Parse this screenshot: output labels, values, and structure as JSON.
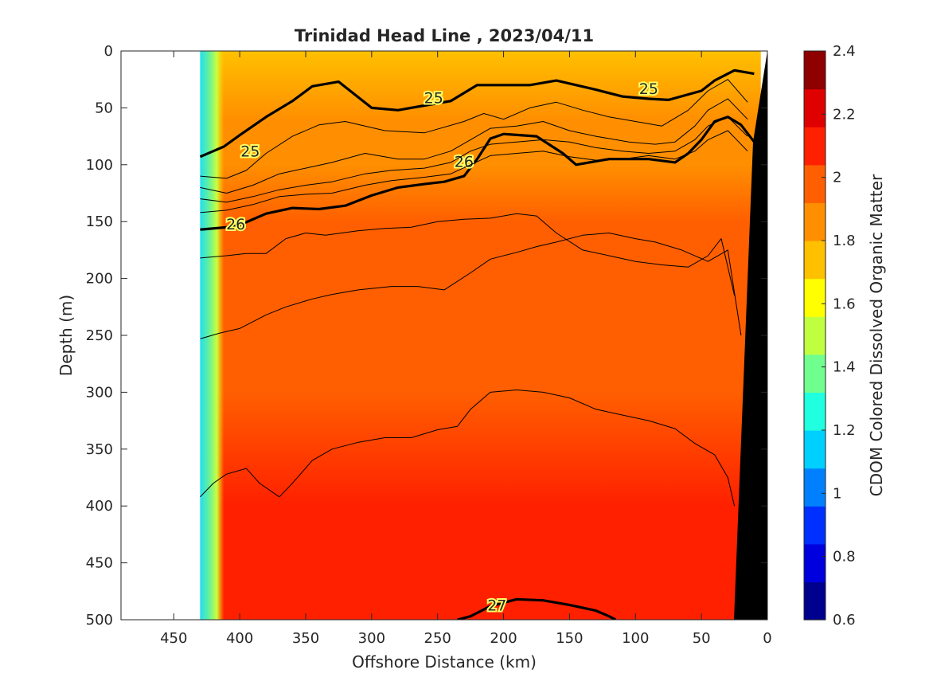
{
  "chart_data": {
    "type": "heatmap",
    "title": "Trinidad Head Line , 2023/04/11",
    "xlabel": "Offshore Distance (km)",
    "ylabel": "Depth (m)",
    "colorbar_label": "CDOM Colored Dissolved Organic Matter",
    "xlim": [
      490,
      0
    ],
    "ylim": [
      0,
      500
    ],
    "x_reversed": true,
    "y_reversed": true,
    "clim": [
      0.6,
      2.4
    ],
    "grid": false,
    "x_ticks": [
      450,
      400,
      350,
      300,
      250,
      200,
      150,
      100,
      50,
      0
    ],
    "y_ticks": [
      0,
      50,
      100,
      150,
      200,
      250,
      300,
      350,
      400,
      450,
      500
    ],
    "colorbar_ticks": [
      0.6,
      0.8,
      1,
      1.2,
      1.4,
      1.6,
      1.8,
      2,
      2.2,
      2.4
    ],
    "data_extent_x": [
      430,
      5
    ],
    "colormap": [
      "#00008f",
      "#0000df",
      "#0030ff",
      "#0080ff",
      "#00d0ff",
      "#20ffdf",
      "#70ff8f",
      "#c0ff40",
      "#ffff00",
      "#ffc000",
      "#ff8f00",
      "#ff5f00",
      "#ff2000",
      "#df0000",
      "#8f0000"
    ],
    "cdom_profile": [
      {
        "depth": 0,
        "value": 1.78
      },
      {
        "depth": 60,
        "value": 1.8
      },
      {
        "depth": 100,
        "value": 1.88
      },
      {
        "depth": 150,
        "value": 1.93
      },
      {
        "depth": 200,
        "value": 1.98
      },
      {
        "depth": 300,
        "value": 2.03
      },
      {
        "depth": 400,
        "value": 2.07
      },
      {
        "depth": 500,
        "value": 2.1
      }
    ],
    "density_contours": [
      {
        "label": "25",
        "bold": true,
        "label_positions": [
          [
            392,
            88
          ],
          [
            253,
            41
          ],
          [
            90,
            33
          ]
        ],
        "points": [
          [
            430,
            93
          ],
          [
            420,
            88
          ],
          [
            412,
            84
          ],
          [
            400,
            74
          ],
          [
            380,
            58
          ],
          [
            360,
            44
          ],
          [
            345,
            31
          ],
          [
            325,
            27
          ],
          [
            300,
            50
          ],
          [
            280,
            52
          ],
          [
            260,
            48
          ],
          [
            240,
            44
          ],
          [
            220,
            30
          ],
          [
            180,
            30
          ],
          [
            160,
            26
          ],
          [
            130,
            34
          ],
          [
            110,
            40
          ],
          [
            90,
            42
          ],
          [
            75,
            43
          ],
          [
            50,
            35
          ],
          [
            40,
            26
          ],
          [
            25,
            17
          ],
          [
            10,
            20
          ]
        ]
      },
      {
        "label": "26",
        "bold": true,
        "label_positions": [
          [
            403,
            152
          ],
          [
            230,
            97
          ]
        ],
        "points": [
          [
            430,
            157
          ],
          [
            410,
            155
          ],
          [
            400,
            153
          ],
          [
            380,
            143
          ],
          [
            360,
            138
          ],
          [
            340,
            139
          ],
          [
            320,
            136
          ],
          [
            300,
            127
          ],
          [
            280,
            120
          ],
          [
            260,
            117
          ],
          [
            245,
            115
          ],
          [
            230,
            110
          ],
          [
            220,
            95
          ],
          [
            210,
            77
          ],
          [
            200,
            73
          ],
          [
            175,
            75
          ],
          [
            155,
            90
          ],
          [
            145,
            100
          ],
          [
            135,
            98
          ],
          [
            120,
            95
          ],
          [
            100,
            95
          ],
          [
            90,
            95
          ],
          [
            70,
            98
          ],
          [
            60,
            90
          ],
          [
            50,
            78
          ],
          [
            40,
            62
          ],
          [
            30,
            58
          ],
          [
            20,
            65
          ],
          [
            10,
            80
          ]
        ]
      },
      {
        "label": "27",
        "bold": true,
        "label_positions": [
          [
            205,
            487
          ]
        ],
        "points": [
          [
            235,
            500
          ],
          [
            225,
            497
          ],
          [
            210,
            488
          ],
          [
            190,
            482
          ],
          [
            170,
            483
          ],
          [
            150,
            487
          ],
          [
            130,
            492
          ],
          [
            120,
            497
          ],
          [
            115,
            500
          ]
        ]
      },
      {
        "label": "",
        "bold": false,
        "points": [
          [
            430,
            110
          ],
          [
            410,
            112
          ],
          [
            395,
            105
          ],
          [
            380,
            90
          ],
          [
            360,
            75
          ],
          [
            340,
            65
          ],
          [
            320,
            62
          ],
          [
            290,
            70
          ],
          [
            260,
            72
          ],
          [
            230,
            62
          ],
          [
            215,
            55
          ],
          [
            200,
            60
          ],
          [
            180,
            50
          ],
          [
            160,
            45
          ],
          [
            140,
            52
          ],
          [
            120,
            58
          ],
          [
            100,
            62
          ],
          [
            80,
            66
          ],
          [
            60,
            52
          ],
          [
            45,
            35
          ],
          [
            30,
            25
          ],
          [
            15,
            45
          ]
        ]
      },
      {
        "label": "",
        "bold": false,
        "points": [
          [
            430,
            120
          ],
          [
            410,
            125
          ],
          [
            390,
            118
          ],
          [
            370,
            108
          ],
          [
            350,
            103
          ],
          [
            330,
            98
          ],
          [
            305,
            90
          ],
          [
            280,
            95
          ],
          [
            260,
            95
          ],
          [
            240,
            88
          ],
          [
            225,
            78
          ],
          [
            210,
            68
          ],
          [
            190,
            66
          ],
          [
            170,
            62
          ],
          [
            150,
            70
          ],
          [
            130,
            75
          ],
          [
            105,
            80
          ],
          [
            85,
            82
          ],
          [
            70,
            80
          ],
          [
            55,
            66
          ],
          [
            45,
            52
          ],
          [
            30,
            42
          ],
          [
            15,
            60
          ]
        ]
      },
      {
        "label": "",
        "bold": false,
        "points": [
          [
            430,
            130
          ],
          [
            410,
            133
          ],
          [
            390,
            128
          ],
          [
            370,
            122
          ],
          [
            350,
            118
          ],
          [
            330,
            115
          ],
          [
            305,
            108
          ],
          [
            285,
            105
          ],
          [
            260,
            103
          ],
          [
            240,
            98
          ],
          [
            225,
            88
          ],
          [
            210,
            82
          ],
          [
            190,
            80
          ],
          [
            170,
            78
          ],
          [
            150,
            80
          ],
          [
            130,
            85
          ],
          [
            110,
            88
          ],
          [
            90,
            90
          ],
          [
            70,
            88
          ],
          [
            55,
            78
          ],
          [
            45,
            66
          ],
          [
            30,
            58
          ],
          [
            15,
            75
          ]
        ]
      },
      {
        "label": "",
        "bold": false,
        "points": [
          [
            430,
            142
          ],
          [
            410,
            140
          ],
          [
            390,
            135
          ],
          [
            370,
            128
          ],
          [
            350,
            126
          ],
          [
            330,
            125
          ],
          [
            305,
            118
          ],
          [
            285,
            114
          ],
          [
            260,
            111
          ],
          [
            240,
            108
          ],
          [
            225,
            100
          ],
          [
            210,
            92
          ],
          [
            190,
            90
          ],
          [
            170,
            88
          ],
          [
            150,
            93
          ],
          [
            130,
            96
          ],
          [
            110,
            95
          ],
          [
            90,
            92
          ],
          [
            70,
            95
          ],
          [
            55,
            88
          ],
          [
            45,
            78
          ],
          [
            30,
            70
          ],
          [
            15,
            88
          ]
        ]
      },
      {
        "label": "",
        "bold": false,
        "points": [
          [
            430,
            182
          ],
          [
            410,
            180
          ],
          [
            395,
            178
          ],
          [
            380,
            178
          ],
          [
            365,
            165
          ],
          [
            350,
            160
          ],
          [
            335,
            162
          ],
          [
            310,
            158
          ],
          [
            290,
            156
          ],
          [
            270,
            155
          ],
          [
            250,
            150
          ],
          [
            230,
            148
          ],
          [
            210,
            147
          ],
          [
            190,
            143
          ],
          [
            175,
            145
          ],
          [
            160,
            160
          ],
          [
            140,
            175
          ],
          [
            120,
            180
          ],
          [
            100,
            185
          ],
          [
            80,
            188
          ],
          [
            60,
            190
          ],
          [
            45,
            180
          ],
          [
            35,
            165
          ],
          [
            25,
            215
          ]
        ]
      },
      {
        "label": "",
        "bold": false,
        "points": [
          [
            430,
            253
          ],
          [
            415,
            248
          ],
          [
            400,
            244
          ],
          [
            380,
            232
          ],
          [
            365,
            225
          ],
          [
            345,
            218
          ],
          [
            330,
            214
          ],
          [
            310,
            210
          ],
          [
            285,
            207
          ],
          [
            265,
            207
          ],
          [
            245,
            210
          ],
          [
            225,
            195
          ],
          [
            210,
            183
          ],
          [
            190,
            177
          ],
          [
            175,
            172
          ],
          [
            160,
            168
          ],
          [
            140,
            162
          ],
          [
            120,
            160
          ],
          [
            100,
            165
          ],
          [
            85,
            168
          ],
          [
            65,
            175
          ],
          [
            45,
            185
          ],
          [
            30,
            175
          ],
          [
            20,
            250
          ]
        ]
      },
      {
        "label": "",
        "bold": false,
        "points": [
          [
            430,
            392
          ],
          [
            420,
            380
          ],
          [
            410,
            372
          ],
          [
            395,
            367
          ],
          [
            385,
            380
          ],
          [
            370,
            392
          ],
          [
            360,
            380
          ],
          [
            345,
            360
          ],
          [
            330,
            350
          ],
          [
            310,
            344
          ],
          [
            290,
            340
          ],
          [
            270,
            340
          ],
          [
            250,
            333
          ],
          [
            235,
            330
          ],
          [
            225,
            315
          ],
          [
            210,
            300
          ],
          [
            190,
            298
          ],
          [
            170,
            300
          ],
          [
            150,
            305
          ],
          [
            130,
            315
          ],
          [
            110,
            320
          ],
          [
            90,
            325
          ],
          [
            70,
            332
          ],
          [
            55,
            345
          ],
          [
            40,
            355
          ],
          [
            30,
            375
          ],
          [
            25,
            400
          ]
        ]
      }
    ]
  }
}
